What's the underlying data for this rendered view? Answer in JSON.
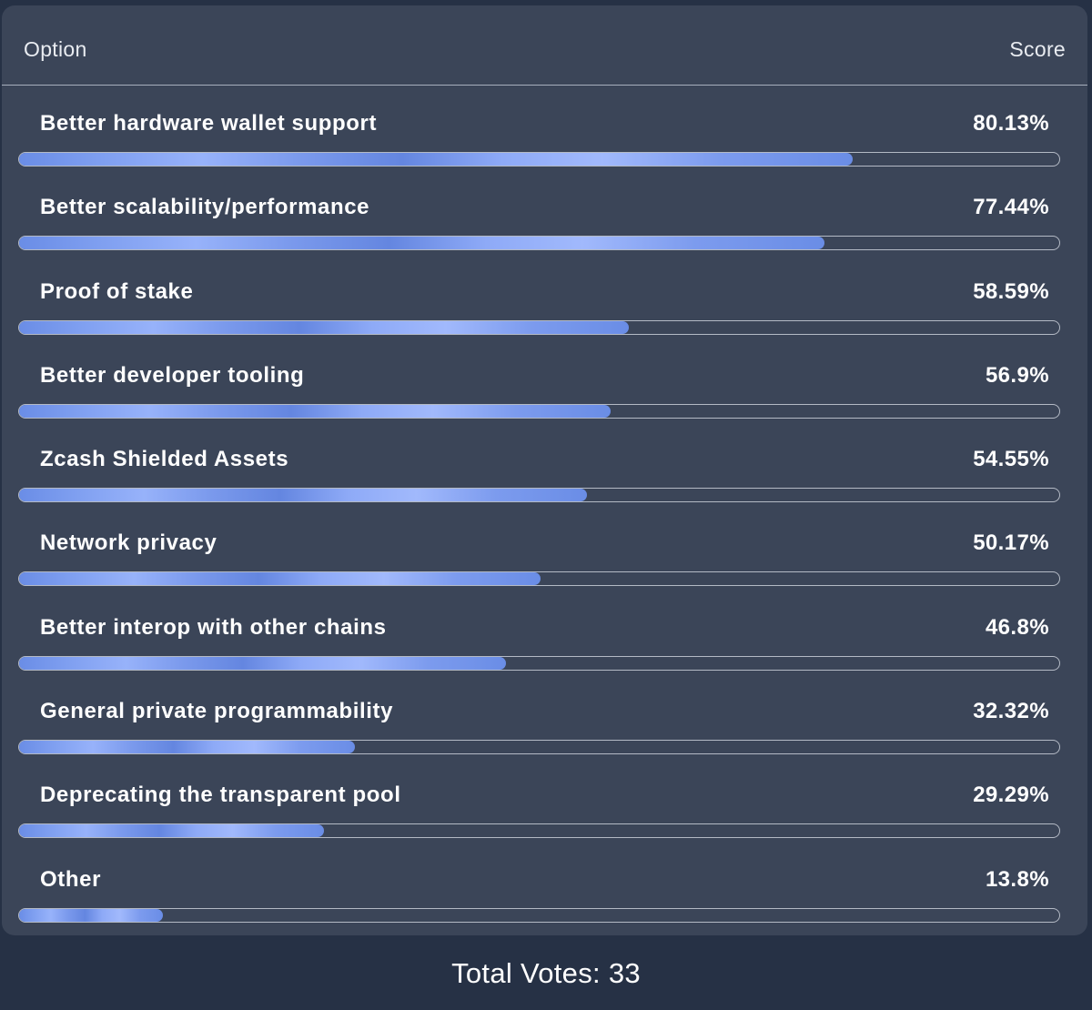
{
  "header": {
    "option_label": "Option",
    "score_label": "Score"
  },
  "options": [
    {
      "label": "Better hardware wallet support",
      "score": "80.13%",
      "value": 80.13
    },
    {
      "label": "Better scalability/performance",
      "score": "77.44%",
      "value": 77.44
    },
    {
      "label": "Proof of stake",
      "score": "58.59%",
      "value": 58.59
    },
    {
      "label": "Better developer tooling",
      "score": "56.9%",
      "value": 56.9
    },
    {
      "label": "Zcash Shielded Assets",
      "score": "54.55%",
      "value": 54.55
    },
    {
      "label": "Network privacy",
      "score": "50.17%",
      "value": 50.17
    },
    {
      "label": "Better interop with other chains",
      "score": "46.8%",
      "value": 46.8
    },
    {
      "label": "General private programmability",
      "score": "32.32%",
      "value": 32.32
    },
    {
      "label": "Deprecating the transparent pool",
      "score": "29.29%",
      "value": 29.29
    },
    {
      "label": "Other",
      "score": "13.8%",
      "value": 13.8
    }
  ],
  "footer": {
    "total_votes": "Total Votes: 33"
  },
  "colors": {
    "page_background": "#263145",
    "panel_background": "#3b4558",
    "bar_fill": "#7f9ff0",
    "bar_track_border": "#b4bac5",
    "text": "#ffffff"
  }
}
